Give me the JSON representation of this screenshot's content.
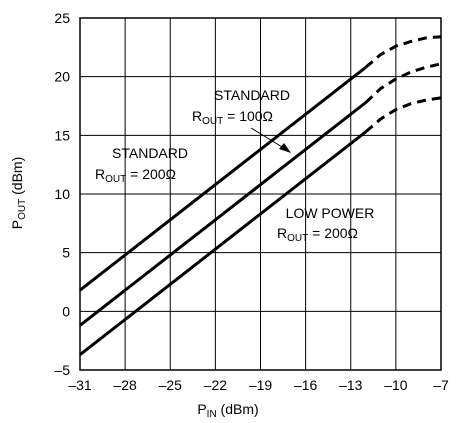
{
  "chart_data": {
    "type": "line",
    "xlabel": {
      "main": "P",
      "sub": "IN",
      "unit": " (dBm)"
    },
    "ylabel": {
      "main": "P",
      "sub": "OUT",
      "unit": " (dBm)"
    },
    "xlim": [
      -31,
      -7
    ],
    "ylim": [
      -5,
      25
    ],
    "xticks": [
      -31,
      -28,
      -25,
      -22,
      -19,
      -16,
      -13,
      -10,
      -7
    ],
    "yticks": [
      -5,
      0,
      5,
      10,
      15,
      20,
      25
    ],
    "xtick_labels": [
      "–31",
      "–28",
      "–25",
      "–22",
      "–19",
      "–16",
      "–13",
      "–10",
      "–7"
    ],
    "ytick_labels": [
      "–5",
      "0",
      "5",
      "10",
      "15",
      "20",
      "25"
    ],
    "grid": true,
    "series": [
      {
        "solid": [
          [
            -31,
            1.8
          ],
          [
            -12,
            20.8
          ]
        ],
        "dashed": [
          [
            -12,
            20.8
          ],
          [
            -11,
            21.9
          ],
          [
            -10,
            22.6
          ],
          [
            -9,
            23.0
          ],
          [
            -8,
            23.3
          ],
          [
            -7,
            23.4
          ]
        ]
      },
      {
        "solid": [
          [
            -31,
            -1.2
          ],
          [
            -12,
            17.8
          ]
        ],
        "dashed": [
          [
            -12,
            17.8
          ],
          [
            -11,
            19.0
          ],
          [
            -10,
            19.8
          ],
          [
            -9,
            20.4
          ],
          [
            -8,
            20.8
          ],
          [
            -7,
            21.1
          ]
        ]
      },
      {
        "solid": [
          [
            -31,
            -3.7
          ],
          [
            -12,
            15.3
          ]
        ],
        "dashed": [
          [
            -12,
            15.3
          ],
          [
            -11,
            16.4
          ],
          [
            -10,
            17.2
          ],
          [
            -9,
            17.7
          ],
          [
            -8,
            18.0
          ],
          [
            -7,
            18.2
          ]
        ]
      }
    ],
    "annotations": [
      {
        "line1": "STANDARD",
        "r_main": "R",
        "r_sub": "OUT",
        "r_rest": " = 100Ω"
      },
      {
        "line1": "STANDARD",
        "r_main": "R",
        "r_sub": "OUT",
        "r_rest": " = 200Ω"
      },
      {
        "line1": "LOW POWER",
        "r_main": "R",
        "r_sub": "OUT",
        "r_rest": " = 200Ω"
      }
    ]
  }
}
